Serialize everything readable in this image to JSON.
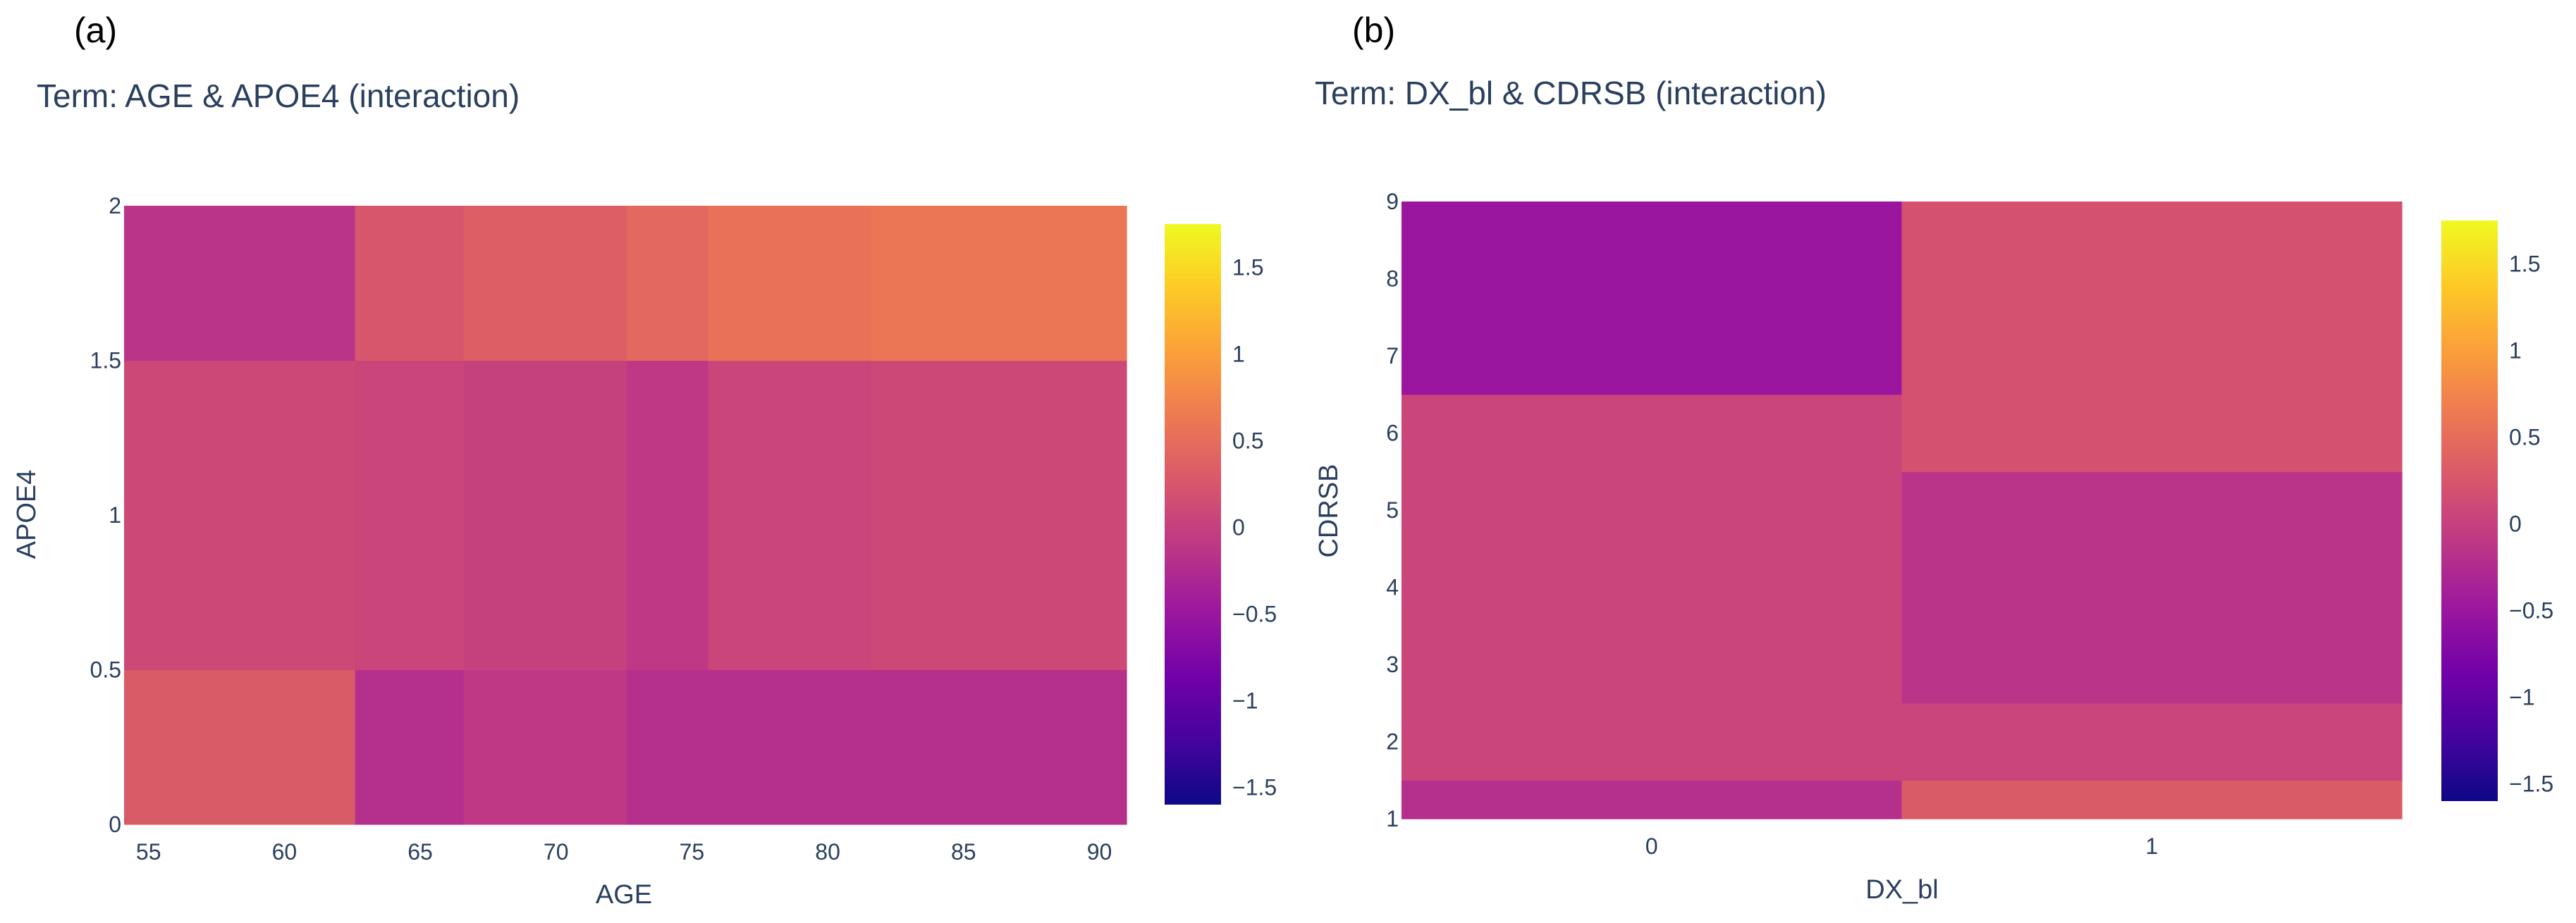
{
  "colors": {
    "scale": [
      "#0d0887",
      "#46039f",
      "#7201a8",
      "#9c179e",
      "#bd3786",
      "#d8576b",
      "#ed7953",
      "#fb9f3a",
      "#fdca26",
      "#f0f921"
    ],
    "text": "#2a3f5f",
    "background": "#ffffff"
  },
  "chart_data": [
    {
      "type": "heatmap",
      "panel_label": "(a)",
      "title": "Term: AGE & APOE4 (interaction)",
      "xlabel": "AGE",
      "ylabel": "APOE4",
      "x_tick_labels": [
        "55",
        "60",
        "65",
        "70",
        "75",
        "80",
        "85",
        "90"
      ],
      "x_tick_values": [
        55,
        60,
        65,
        70,
        75,
        80,
        85,
        90
      ],
      "y_tick_labels": [
        "0",
        "0.5",
        "1",
        "1.5",
        "2"
      ],
      "y_tick_values": [
        0,
        0.5,
        1,
        1.5,
        2
      ],
      "xlim": [
        54.1,
        91.0
      ],
      "ylim": [
        0,
        2
      ],
      "x_edges": [
        54.1,
        62.6,
        66.6,
        72.6,
        75.6,
        81.6,
        91.0
      ],
      "y_edges": [
        0,
        0.5,
        1.5,
        2
      ],
      "z": [
        [
          0.3,
          -0.2,
          -0.1,
          -0.2,
          -0.2,
          -0.2
        ],
        [
          0.1,
          0.05,
          0.0,
          -0.1,
          0.05,
          0.1
        ],
        [
          -0.15,
          0.25,
          0.35,
          0.45,
          0.55,
          0.6
        ]
      ],
      "colorbar": {
        "range": [
          -1.6,
          1.75
        ],
        "tick_values": [
          -1.5,
          -1,
          -0.5,
          0,
          0.5,
          1,
          1.5
        ],
        "tick_labels": [
          "−1.5",
          "−1",
          "−0.5",
          "0",
          "0.5",
          "1",
          "1.5"
        ]
      }
    },
    {
      "type": "heatmap",
      "panel_label": "(b)",
      "title": "Term: DX_bl & CDRSB (interaction)",
      "xlabel": "DX_bl",
      "ylabel": "CDRSB",
      "x_tick_labels": [
        "0",
        "1"
      ],
      "x_tick_values": [
        0,
        1
      ],
      "y_tick_labels": [
        "1",
        "2",
        "3",
        "4",
        "5",
        "6",
        "7",
        "8",
        "9"
      ],
      "y_tick_values": [
        1,
        2,
        3,
        4,
        5,
        6,
        7,
        8,
        9
      ],
      "xlim": [
        -0.5,
        1.5
      ],
      "ylim": [
        1,
        9
      ],
      "x_edges": [
        -0.5,
        0.5,
        1.5
      ],
      "y_edges": [
        1,
        1.5,
        2.5,
        5.5,
        6.5,
        9
      ],
      "z": [
        [
          -0.2,
          0.3
        ],
        [
          0.05,
          0.05
        ],
        [
          0.05,
          -0.15
        ],
        [
          0.05,
          0.2
        ],
        [
          -0.5,
          0.2
        ]
      ],
      "colorbar": {
        "range": [
          -1.6,
          1.75
        ],
        "tick_values": [
          -1.5,
          -1,
          -0.5,
          0,
          0.5,
          1,
          1.5
        ],
        "tick_labels": [
          "−1.5",
          "−1",
          "−0.5",
          "0",
          "0.5",
          "1",
          "1.5"
        ]
      }
    }
  ]
}
